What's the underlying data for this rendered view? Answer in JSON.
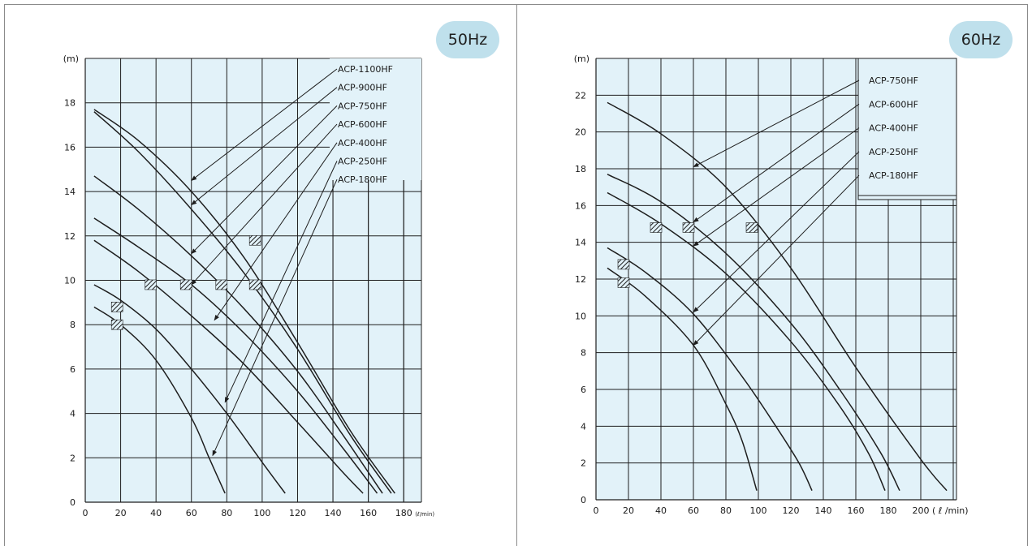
{
  "chart_data": [
    {
      "type": "line",
      "frequency_badge": "50Hz",
      "y_unit": "(m)",
      "x_unit": "(ℓ/min)",
      "xlim": [
        0,
        190
      ],
      "ylim": [
        0,
        20
      ],
      "x_ticks": [
        "0",
        "20",
        "40",
        "60",
        "80",
        "100",
        "120",
        "140",
        "160",
        "180"
      ],
      "y_ticks": [
        "0",
        "2",
        "4",
        "6",
        "8",
        "10",
        "12",
        "14",
        "16",
        "18"
      ],
      "grid": true,
      "legend_placement": "top-right",
      "colors": {
        "plot_bg": "#e2f2f9",
        "grid": "#1e1e1e",
        "curve": "#1e1e1e",
        "badge_bg": "#bfe0ec"
      },
      "series": [
        {
          "name": "ACP-1100HF",
          "x": [
            5,
            30,
            60,
            90,
            120,
            150,
            175
          ],
          "y": [
            17.7,
            16.3,
            14.0,
            11.0,
            7.2,
            3.2,
            0.4
          ]
        },
        {
          "name": "ACP-900HF",
          "x": [
            5,
            30,
            60,
            90,
            120,
            150,
            173
          ],
          "y": [
            17.6,
            15.8,
            13.2,
            10.3,
            6.9,
            3.0,
            0.4
          ]
        },
        {
          "name": "ACP-750HF",
          "x": [
            5,
            30,
            60,
            90,
            120,
            145,
            168
          ],
          "y": [
            14.7,
            13.2,
            11.1,
            8.7,
            5.9,
            3.1,
            0.4
          ]
        },
        {
          "name": "ACP-600HF",
          "x": [
            5,
            30,
            60,
            90,
            120,
            145,
            165
          ],
          "y": [
            12.8,
            11.5,
            9.8,
            7.6,
            5.0,
            2.5,
            0.4
          ]
        },
        {
          "name": "ACP-400HF",
          "x": [
            5,
            30,
            60,
            90,
            120,
            145,
            157
          ],
          "y": [
            11.8,
            10.4,
            8.4,
            6.2,
            3.6,
            1.4,
            0.4
          ]
        },
        {
          "name": "ACP-250HF",
          "x": [
            5,
            20,
            40,
            60,
            80,
            100,
            113
          ],
          "y": [
            9.8,
            9.1,
            7.8,
            6.0,
            4.0,
            1.8,
            0.4
          ]
        },
        {
          "name": "ACP-180HF",
          "x": [
            5,
            20,
            40,
            60,
            70,
            79
          ],
          "y": [
            8.8,
            8.0,
            6.4,
            3.8,
            2.0,
            0.4
          ]
        }
      ],
      "rated_points": [
        {
          "x": 18,
          "y": 8.8
        },
        {
          "x": 18,
          "y": 8.0
        },
        {
          "x": 37,
          "y": 9.8
        },
        {
          "x": 57,
          "y": 9.8
        },
        {
          "x": 77,
          "y": 9.8
        },
        {
          "x": 96,
          "y": 9.8
        },
        {
          "x": 96,
          "y": 11.8
        }
      ],
      "pointers": [
        {
          "label": "ACP-1100HF",
          "tip": [
            60,
            14.5
          ]
        },
        {
          "label": "ACP-900HF",
          "tip": [
            60,
            13.4
          ]
        },
        {
          "label": "ACP-750HF",
          "tip": [
            60,
            11.2
          ]
        },
        {
          "label": "ACP-600HF",
          "tip": [
            60,
            9.8
          ]
        },
        {
          "label": "ACP-400HF",
          "tip": [
            73,
            8.2
          ]
        },
        {
          "label": "ACP-250HF",
          "tip": [
            79,
            4.5
          ]
        },
        {
          "label": "ACP-180HF",
          "tip": [
            72,
            2.1
          ]
        }
      ]
    },
    {
      "type": "line",
      "frequency_badge": "60Hz",
      "y_unit": "(m)",
      "x_unit": "( ℓ /min)",
      "xlim": [
        0,
        222
      ],
      "ylim": [
        0,
        24
      ],
      "x_ticks": [
        "0",
        "20",
        "40",
        "60",
        "80",
        "100",
        "120",
        "140",
        "160",
        "180",
        "200"
      ],
      "y_ticks": [
        "0",
        "2",
        "4",
        "6",
        "8",
        "10",
        "12",
        "14",
        "16",
        "18",
        "20",
        "22"
      ],
      "grid": true,
      "legend_placement": "top-right",
      "colors": {
        "plot_bg": "#e2f2f9",
        "grid": "#1e1e1e",
        "curve": "#1e1e1e",
        "badge_bg": "#bfe0ec"
      },
      "series": [
        {
          "name": "ACP-750HF",
          "x": [
            7,
            40,
            80,
            120,
            160,
            200,
            216
          ],
          "y": [
            21.6,
            19.9,
            17.0,
            12.6,
            7.2,
            2.2,
            0.5
          ]
        },
        {
          "name": "ACP-600HF",
          "x": [
            7,
            40,
            80,
            120,
            150,
            175,
            187
          ],
          "y": [
            17.7,
            16.2,
            13.4,
            9.6,
            6.0,
            2.6,
            0.5
          ]
        },
        {
          "name": "ACP-400HF",
          "x": [
            7,
            40,
            80,
            120,
            150,
            168,
            178
          ],
          "y": [
            16.7,
            15.0,
            12.3,
            8.6,
            5.1,
            2.5,
            0.5
          ]
        },
        {
          "name": "ACP-250HF",
          "x": [
            7,
            30,
            60,
            90,
            110,
            125,
            133
          ],
          "y": [
            13.7,
            12.4,
            10.1,
            6.7,
            4.1,
            2.0,
            0.5
          ]
        },
        {
          "name": "ACP-180HF",
          "x": [
            7,
            30,
            60,
            80,
            90,
            99
          ],
          "y": [
            12.6,
            11.1,
            8.4,
            5.2,
            3.2,
            0.5
          ]
        }
      ],
      "rated_points": [
        {
          "x": 17,
          "y": 12.8
        },
        {
          "x": 17,
          "y": 11.8
        },
        {
          "x": 37,
          "y": 14.8
        },
        {
          "x": 57,
          "y": 14.8
        },
        {
          "x": 96,
          "y": 14.8
        }
      ],
      "pointers": [
        {
          "label": "ACP-750HF",
          "tip": [
            60,
            18.1
          ]
        },
        {
          "label": "ACP-600HF",
          "tip": [
            60,
            15.1
          ]
        },
        {
          "label": "ACP-400HF",
          "tip": [
            60,
            13.8
          ]
        },
        {
          "label": "ACP-250HF",
          "tip": [
            60,
            10.2
          ]
        },
        {
          "label": "ACP-180HF",
          "tip": [
            60,
            8.4
          ]
        }
      ]
    }
  ]
}
